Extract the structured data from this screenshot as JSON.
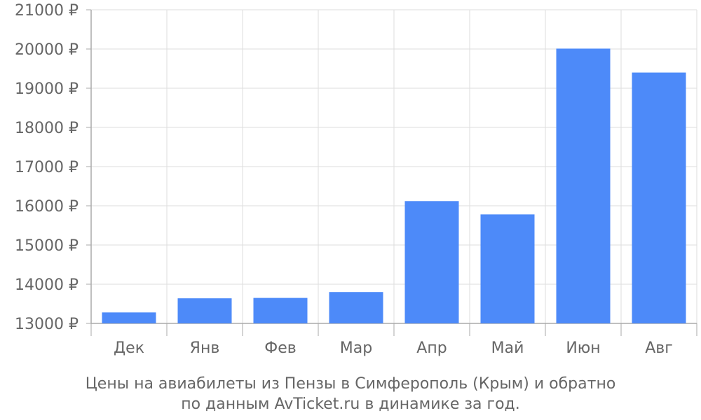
{
  "chart_data": {
    "type": "bar",
    "categories": [
      "Дек",
      "Янв",
      "Фев",
      "Мар",
      "Апр",
      "Май",
      "Июн",
      "Авг"
    ],
    "values": [
      13280,
      13640,
      13650,
      13800,
      16120,
      15780,
      20010,
      19400
    ],
    "ylim": [
      13000,
      21000
    ],
    "yticks": [
      13000,
      14000,
      15000,
      16000,
      17000,
      18000,
      19000,
      20000,
      21000
    ],
    "ytick_labels": [
      "13000 ₽",
      "14000 ₽",
      "15000 ₽",
      "16000 ₽",
      "17000 ₽",
      "18000 ₽",
      "19000 ₽",
      "20000 ₽",
      "21000 ₽"
    ],
    "bar_color": "#4d8af9",
    "grid": true,
    "caption_line1": "Цены на авиабилеты из Пензы в Симферополь (Крым) и обратно",
    "caption_line2": "по данным AvTicket.ru в динамике за год."
  }
}
